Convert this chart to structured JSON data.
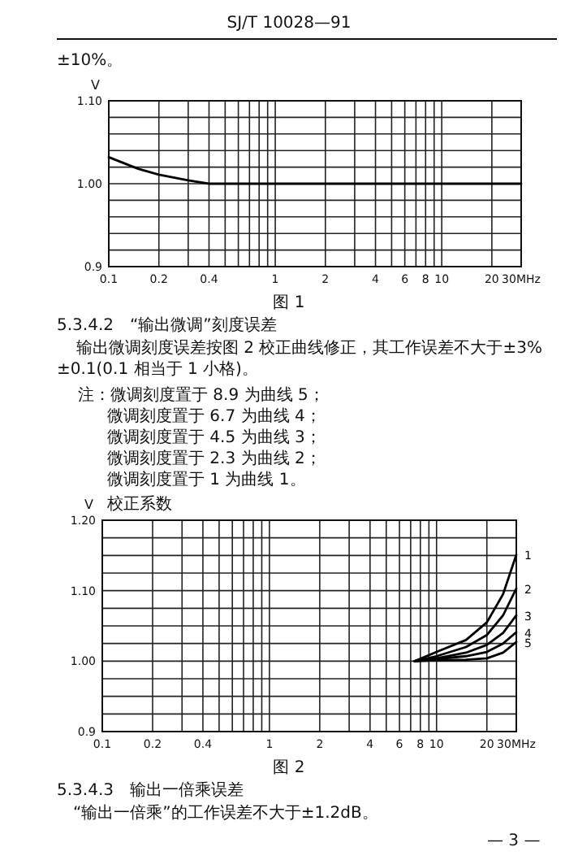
{
  "chart_data": [
    {
      "type": "line",
      "ylabel": "V",
      "log": "x",
      "grid": true,
      "annotations": [
        "SJ/T 10028—91",
        "±10%。",
        "图 1"
      ],
      "xlim": [
        0.1,
        30
      ],
      "ylim": [
        0.9,
        1.1
      ],
      "xticks": [
        0.1,
        0.2,
        {
          "value": 0.3,
          "label": null
        },
        0.4,
        {
          "value": 0.5,
          "label": null
        },
        {
          "value": 0.6,
          "label": null
        },
        {
          "value": 0.7,
          "label": null
        },
        {
          "value": 0.8,
          "label": null
        },
        {
          "value": 0.9,
          "label": null
        },
        1,
        2,
        {
          "value": 3,
          "label": null
        },
        4,
        {
          "value": 5,
          "label": null
        },
        6,
        {
          "value": 7,
          "label": null
        },
        8,
        {
          "value": 9,
          "label": null
        },
        10,
        20,
        {
          "value": 30,
          "label": "30MHz"
        }
      ],
      "yticks": [
        0.9,
        {
          "value": 0.92,
          "label": null
        },
        {
          "value": 0.94,
          "label": null
        },
        {
          "value": 0.96,
          "label": null
        },
        {
          "value": 0.98,
          "label": null
        },
        {
          "value": 1.0,
          "label": "1.00"
        },
        {
          "value": 1.02,
          "label": null
        },
        {
          "value": 1.04,
          "label": null
        },
        {
          "value": 1.06,
          "label": null
        },
        {
          "value": 1.08,
          "label": null
        },
        {
          "value": 1.1,
          "label": "1.10"
        }
      ],
      "series": [
        {
          "color": "#000000",
          "x": [
            0.1,
            0.15,
            0.2,
            0.3,
            0.4,
            1,
            10,
            30
          ],
          "values": [
            1.032,
            1.018,
            1.011,
            1.004,
            1.0,
            1.0,
            1.0,
            1.0
          ]
        }
      ]
    },
    {
      "type": "line",
      "ylabel": "V",
      "log": "x",
      "grid": true,
      "annotations": [
        "5.3.4.2　“输出微调”刻度误差",
        "输出微调刻度误差按图 2 校正曲线修正，其工作误差不大于±3%±0.1(0.1 相当于 1 小格)。",
        "注：微调刻度置于 8.9 为曲线 5；",
        "微调刻度置于 6.7 为曲线 4；",
        "微调刻度置于 4.5 为曲线 3；",
        "微调刻度置于 2.3 为曲线 2；",
        "微调刻度置于 1 为曲线 1。",
        "校正系数",
        "图 2",
        "5.3.4.3　输出一倍乘误差",
        "“输出一倍乘”的工作误差不大于±1.2dB。",
        "— 3 —"
      ],
      "xlim": [
        0.1,
        30
      ],
      "ylim": [
        0.9,
        1.2
      ],
      "xticks": [
        0.1,
        0.2,
        {
          "value": 0.3,
          "label": null
        },
        0.4,
        {
          "value": 0.5,
          "label": null
        },
        {
          "value": 0.6,
          "label": null
        },
        {
          "value": 0.7,
          "label": null
        },
        {
          "value": 0.8,
          "label": null
        },
        {
          "value": 0.9,
          "label": null
        },
        1,
        2,
        {
          "value": 3,
          "label": null
        },
        4,
        {
          "value": 5,
          "label": null
        },
        6,
        {
          "value": 7,
          "label": null
        },
        8,
        {
          "value": 9,
          "label": null
        },
        10,
        20,
        {
          "value": 30,
          "label": "30MHz"
        }
      ],
      "yticks": [
        0.9,
        {
          "value": 0.925,
          "label": null
        },
        {
          "value": 0.95,
          "label": null
        },
        {
          "value": 0.975,
          "label": null
        },
        {
          "value": 1.0,
          "label": "1.00"
        },
        {
          "value": 1.025,
          "label": null
        },
        {
          "value": 1.05,
          "label": null
        },
        {
          "value": 1.075,
          "label": null
        },
        {
          "value": 1.1,
          "label": "1.10"
        },
        {
          "value": 1.125,
          "label": null
        },
        {
          "value": 1.15,
          "label": null
        },
        {
          "value": 1.175,
          "label": null
        },
        {
          "value": 1.2,
          "label": "1.20"
        }
      ],
      "series": [
        {
          "name": "1",
          "color": "#000000",
          "x": [
            7.4,
            10,
            15,
            20,
            25,
            30
          ],
          "values": [
            1.0,
            1.013,
            1.03,
            1.055,
            1.095,
            1.151
          ]
        },
        {
          "name": "2",
          "color": "#000000",
          "x": [
            7.4,
            10,
            15,
            20,
            25,
            30
          ],
          "values": [
            1.0,
            1.007,
            1.02,
            1.037,
            1.065,
            1.103
          ]
        },
        {
          "name": "3",
          "color": "#000000",
          "x": [
            7.4,
            10,
            15,
            20,
            25,
            30
          ],
          "values": [
            1.0,
            1.004,
            1.012,
            1.023,
            1.04,
            1.065
          ]
        },
        {
          "name": "4",
          "color": "#000000",
          "x": [
            7.4,
            10,
            15,
            20,
            25,
            30
          ],
          "values": [
            1.0,
            1.003,
            1.007,
            1.013,
            1.025,
            1.041
          ]
        },
        {
          "name": "5",
          "color": "#000000",
          "x": [
            7.4,
            10,
            15,
            20,
            25,
            30
          ],
          "values": [
            1.0,
            1.001,
            1.002,
            1.004,
            1.012,
            1.027
          ]
        }
      ]
    }
  ]
}
